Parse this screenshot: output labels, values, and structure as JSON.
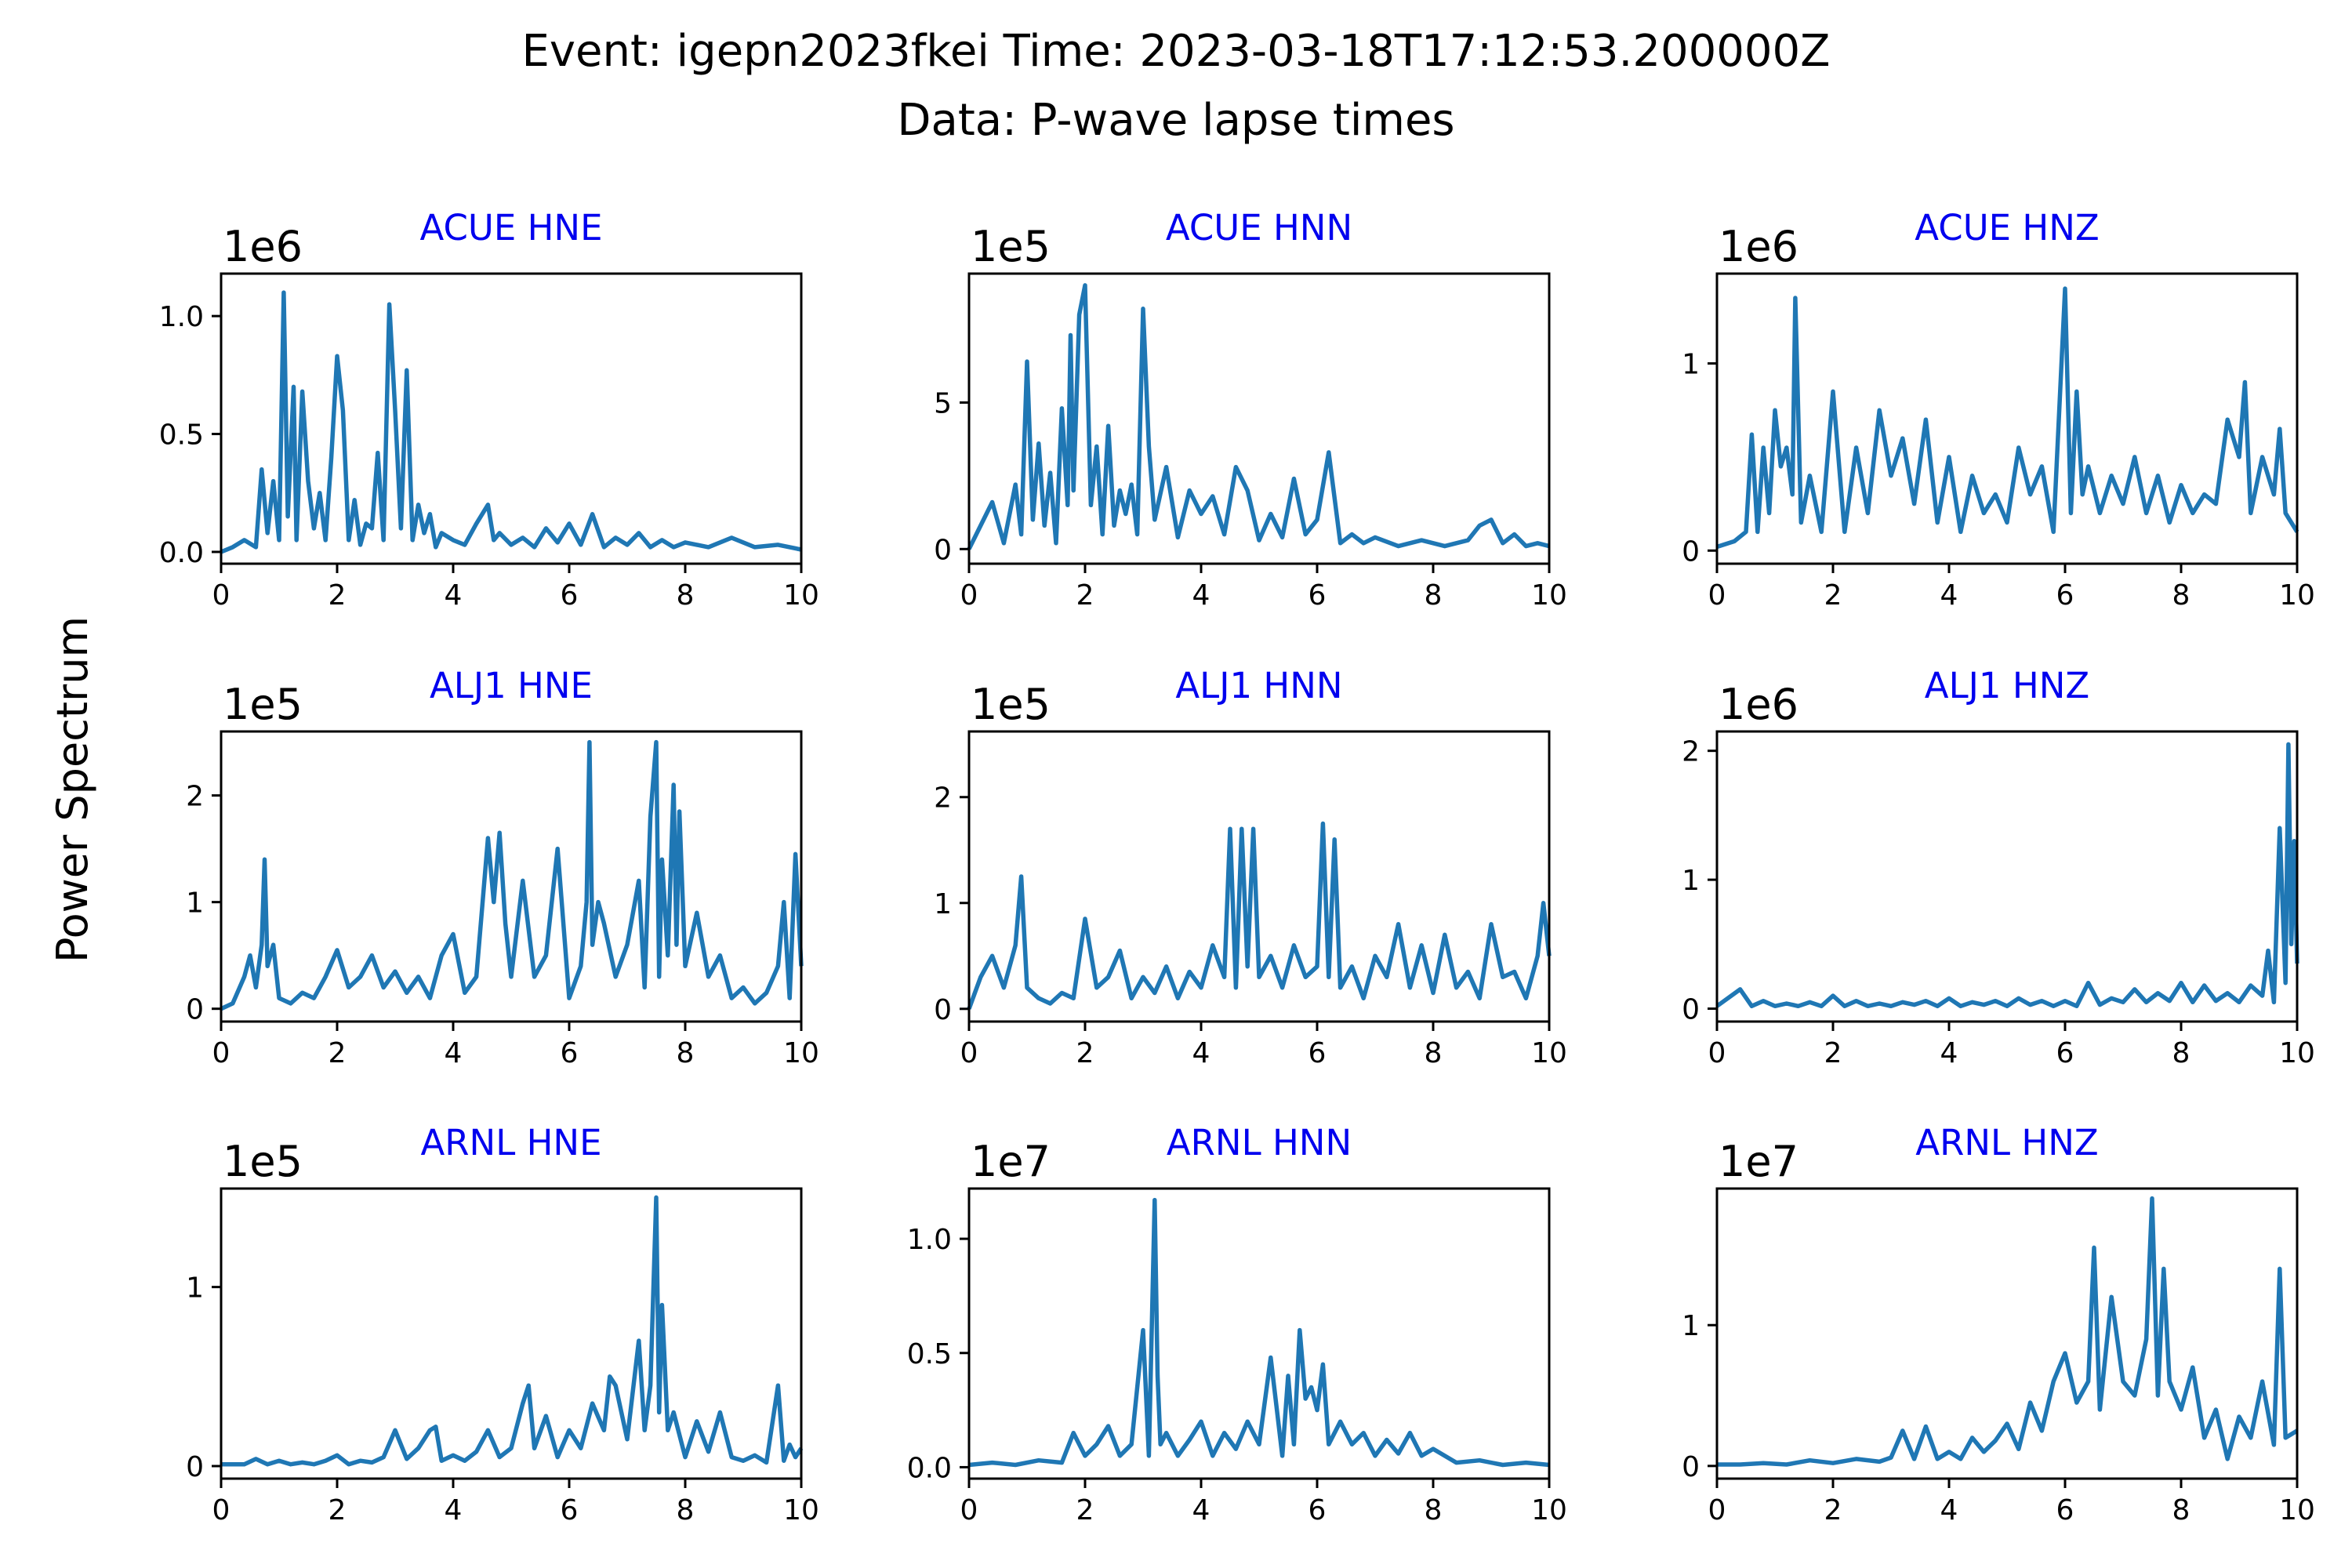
{
  "figure": {
    "title_line1": "Event: igepn2023fkei Time: 2023-03-18T17:12:53.200000Z",
    "title_line2": "Data: P-wave lapse times",
    "ylabel": "Power Spectrum"
  },
  "colors": {
    "line": "#1f77b4",
    "subplot_title": "#0000ee",
    "axis": "#000000",
    "text": "#000000"
  },
  "chart_data": [
    {
      "type": "line",
      "title": "ACUE HNE",
      "multiplier": "1e6",
      "xlim": [
        0,
        10
      ],
      "ylim": [
        -0.05,
        1.18
      ],
      "xticks": [
        "0",
        "2",
        "4",
        "6",
        "8",
        "10"
      ],
      "yticks": [
        0,
        0.5,
        1.0
      ],
      "ytick_labels": [
        "0.0",
        "0.5",
        "1.0"
      ],
      "x": [
        0,
        0.2,
        0.4,
        0.6,
        0.7,
        0.8,
        0.9,
        1.0,
        1.08,
        1.15,
        1.25,
        1.3,
        1.4,
        1.5,
        1.6,
        1.7,
        1.8,
        1.9,
        2.0,
        2.1,
        2.2,
        2.3,
        2.4,
        2.5,
        2.6,
        2.7,
        2.8,
        2.9,
        3.0,
        3.1,
        3.2,
        3.3,
        3.4,
        3.5,
        3.6,
        3.7,
        3.8,
        4.0,
        4.2,
        4.4,
        4.6,
        4.7,
        4.8,
        5.0,
        5.2,
        5.4,
        5.6,
        5.8,
        6.0,
        6.2,
        6.4,
        6.6,
        6.8,
        7.0,
        7.2,
        7.4,
        7.6,
        7.8,
        8.0,
        8.4,
        8.8,
        9.2,
        9.6,
        10.0
      ],
      "y": [
        0,
        0.02,
        0.05,
        0.02,
        0.35,
        0.08,
        0.3,
        0.05,
        1.1,
        0.15,
        0.7,
        0.05,
        0.68,
        0.3,
        0.1,
        0.25,
        0.05,
        0.4,
        0.83,
        0.6,
        0.05,
        0.22,
        0.03,
        0.12,
        0.1,
        0.42,
        0.05,
        1.05,
        0.6,
        0.1,
        0.77,
        0.05,
        0.2,
        0.08,
        0.16,
        0.02,
        0.08,
        0.05,
        0.03,
        0.12,
        0.2,
        0.05,
        0.08,
        0.03,
        0.06,
        0.02,
        0.1,
        0.04,
        0.12,
        0.03,
        0.16,
        0.02,
        0.06,
        0.03,
        0.08,
        0.02,
        0.05,
        0.02,
        0.04,
        0.02,
        0.06,
        0.02,
        0.03,
        0.01
      ]
    },
    {
      "type": "line",
      "title": "ACUE HNN",
      "multiplier": "1e5",
      "xlim": [
        0,
        10
      ],
      "ylim": [
        -0.5,
        9.4
      ],
      "xticks": [
        "0",
        "2",
        "4",
        "6",
        "8",
        "10"
      ],
      "yticks": [
        0,
        5
      ],
      "ytick_labels": [
        "0",
        "5"
      ],
      "x": [
        0,
        0.2,
        0.4,
        0.6,
        0.8,
        0.9,
        1.0,
        1.1,
        1.2,
        1.3,
        1.4,
        1.5,
        1.6,
        1.7,
        1.75,
        1.8,
        1.9,
        2.0,
        2.1,
        2.2,
        2.3,
        2.4,
        2.5,
        2.6,
        2.7,
        2.8,
        2.9,
        3.0,
        3.1,
        3.2,
        3.4,
        3.6,
        3.8,
        4.0,
        4.2,
        4.4,
        4.6,
        4.8,
        5.0,
        5.2,
        5.4,
        5.6,
        5.8,
        6.0,
        6.2,
        6.4,
        6.6,
        6.8,
        7.0,
        7.4,
        7.8,
        8.2,
        8.6,
        8.8,
        9.0,
        9.2,
        9.4,
        9.6,
        9.8,
        10.0
      ],
      "y": [
        0,
        0.8,
        1.6,
        0.2,
        2.2,
        0.5,
        6.4,
        1.0,
        3.6,
        0.8,
        2.6,
        0.2,
        4.8,
        1.5,
        7.3,
        2.0,
        8.0,
        9.0,
        1.5,
        3.5,
        0.5,
        4.2,
        0.8,
        2.0,
        1.2,
        2.2,
        0.5,
        8.2,
        3.5,
        1.0,
        2.8,
        0.4,
        2.0,
        1.2,
        1.8,
        0.5,
        2.8,
        2.0,
        0.3,
        1.2,
        0.4,
        2.4,
        0.5,
        1.0,
        3.3,
        0.2,
        0.5,
        0.2,
        0.4,
        0.1,
        0.3,
        0.1,
        0.3,
        0.8,
        1.0,
        0.2,
        0.5,
        0.1,
        0.2,
        0.1
      ]
    },
    {
      "type": "line",
      "title": "ACUE HNZ",
      "multiplier": "1e6",
      "xlim": [
        0,
        10
      ],
      "ylim": [
        -0.07,
        1.48
      ],
      "xticks": [
        "0",
        "2",
        "4",
        "6",
        "8",
        "10"
      ],
      "yticks": [
        0,
        1
      ],
      "ytick_labels": [
        "0",
        "1"
      ],
      "x": [
        0,
        0.3,
        0.5,
        0.6,
        0.7,
        0.8,
        0.9,
        1.0,
        1.1,
        1.2,
        1.3,
        1.35,
        1.45,
        1.6,
        1.8,
        2.0,
        2.2,
        2.4,
        2.6,
        2.8,
        3.0,
        3.2,
        3.4,
        3.6,
        3.8,
        4.0,
        4.2,
        4.4,
        4.6,
        4.8,
        5.0,
        5.2,
        5.4,
        5.6,
        5.8,
        6.0,
        6.1,
        6.2,
        6.3,
        6.4,
        6.6,
        6.8,
        7.0,
        7.2,
        7.4,
        7.6,
        7.8,
        8.0,
        8.2,
        8.4,
        8.6,
        8.8,
        9.0,
        9.1,
        9.2,
        9.4,
        9.6,
        9.7,
        9.8,
        10.0
      ],
      "y": [
        0.02,
        0.05,
        0.1,
        0.62,
        0.1,
        0.55,
        0.2,
        0.75,
        0.45,
        0.55,
        0.3,
        1.35,
        0.15,
        0.4,
        0.1,
        0.85,
        0.1,
        0.55,
        0.2,
        0.75,
        0.4,
        0.6,
        0.25,
        0.7,
        0.15,
        0.5,
        0.1,
        0.4,
        0.2,
        0.3,
        0.15,
        0.55,
        0.3,
        0.45,
        0.1,
        1.4,
        0.2,
        0.85,
        0.3,
        0.45,
        0.2,
        0.4,
        0.25,
        0.5,
        0.2,
        0.4,
        0.15,
        0.35,
        0.2,
        0.3,
        0.25,
        0.7,
        0.5,
        0.9,
        0.2,
        0.5,
        0.3,
        0.65,
        0.2,
        0.1
      ]
    },
    {
      "type": "line",
      "title": "ALJ1 HNE",
      "multiplier": "1e5",
      "xlim": [
        0,
        10
      ],
      "ylim": [
        -0.12,
        2.6
      ],
      "xticks": [
        "0",
        "2",
        "4",
        "6",
        "8",
        "10"
      ],
      "yticks": [
        0,
        1,
        2
      ],
      "ytick_labels": [
        "0",
        "1",
        "2"
      ],
      "x": [
        0,
        0.2,
        0.4,
        0.5,
        0.6,
        0.7,
        0.75,
        0.8,
        0.9,
        1.0,
        1.2,
        1.4,
        1.6,
        1.8,
        2.0,
        2.2,
        2.4,
        2.6,
        2.8,
        3.0,
        3.2,
        3.4,
        3.6,
        3.8,
        4.0,
        4.2,
        4.4,
        4.6,
        4.7,
        4.8,
        4.9,
        5.0,
        5.2,
        5.4,
        5.6,
        5.8,
        6.0,
        6.2,
        6.3,
        6.35,
        6.4,
        6.5,
        6.6,
        6.8,
        7.0,
        7.2,
        7.3,
        7.4,
        7.5,
        7.55,
        7.6,
        7.7,
        7.8,
        7.85,
        7.9,
        8.0,
        8.2,
        8.4,
        8.6,
        8.8,
        9.0,
        9.2,
        9.4,
        9.6,
        9.7,
        9.8,
        9.9,
        10.0
      ],
      "y": [
        0,
        0.05,
        0.3,
        0.5,
        0.2,
        0.6,
        1.4,
        0.4,
        0.6,
        0.1,
        0.05,
        0.15,
        0.1,
        0.3,
        0.55,
        0.2,
        0.3,
        0.5,
        0.2,
        0.35,
        0.15,
        0.3,
        0.1,
        0.5,
        0.7,
        0.15,
        0.3,
        1.6,
        1.0,
        1.65,
        0.8,
        0.3,
        1.2,
        0.3,
        0.5,
        1.5,
        0.1,
        0.4,
        1.0,
        2.5,
        0.6,
        1.0,
        0.8,
        0.3,
        0.6,
        1.2,
        0.2,
        1.8,
        2.5,
        0.3,
        1.4,
        0.5,
        2.1,
        0.6,
        1.85,
        0.4,
        0.9,
        0.3,
        0.5,
        0.1,
        0.2,
        0.05,
        0.15,
        0.4,
        1.0,
        0.1,
        1.45,
        0.4
      ]
    },
    {
      "type": "line",
      "title": "ALJ1 HNN",
      "multiplier": "1e5",
      "xlim": [
        0,
        10
      ],
      "ylim": [
        -0.12,
        2.62
      ],
      "xticks": [
        "0",
        "2",
        "4",
        "6",
        "8",
        "10"
      ],
      "yticks": [
        0,
        1,
        2
      ],
      "ytick_labels": [
        "0",
        "1",
        "2"
      ],
      "x": [
        0,
        0.2,
        0.4,
        0.6,
        0.8,
        0.9,
        1.0,
        1.2,
        1.4,
        1.6,
        1.8,
        2.0,
        2.2,
        2.4,
        2.6,
        2.8,
        3.0,
        3.2,
        3.4,
        3.6,
        3.8,
        4.0,
        4.2,
        4.4,
        4.5,
        4.6,
        4.7,
        4.8,
        4.9,
        5.0,
        5.2,
        5.4,
        5.6,
        5.8,
        6.0,
        6.1,
        6.2,
        6.3,
        6.4,
        6.6,
        6.8,
        7.0,
        7.2,
        7.4,
        7.6,
        7.8,
        8.0,
        8.2,
        8.4,
        8.6,
        8.8,
        9.0,
        9.2,
        9.4,
        9.6,
        9.8,
        9.9,
        10.0
      ],
      "y": [
        0,
        0.3,
        0.5,
        0.2,
        0.6,
        1.25,
        0.2,
        0.1,
        0.05,
        0.15,
        0.1,
        0.85,
        0.2,
        0.3,
        0.55,
        0.1,
        0.3,
        0.15,
        0.4,
        0.1,
        0.35,
        0.2,
        0.6,
        0.3,
        1.7,
        0.2,
        1.7,
        0.4,
        1.7,
        0.3,
        0.5,
        0.2,
        0.6,
        0.3,
        0.4,
        1.75,
        0.3,
        1.6,
        0.2,
        0.4,
        0.1,
        0.5,
        0.3,
        0.8,
        0.2,
        0.6,
        0.15,
        0.7,
        0.2,
        0.35,
        0.1,
        0.8,
        0.3,
        0.35,
        0.1,
        0.5,
        1.0,
        0.5
      ]
    },
    {
      "type": "line",
      "title": "ALJ1 HNZ",
      "multiplier": "1e6",
      "xlim": [
        0,
        10
      ],
      "ylim": [
        -0.1,
        2.15
      ],
      "xticks": [
        "0",
        "2",
        "4",
        "6",
        "8",
        "10"
      ],
      "yticks": [
        0,
        1,
        2
      ],
      "ytick_labels": [
        "0",
        "1",
        "2"
      ],
      "x": [
        0,
        0.4,
        0.6,
        0.8,
        1.0,
        1.2,
        1.4,
        1.6,
        1.8,
        2.0,
        2.2,
        2.4,
        2.6,
        2.8,
        3.0,
        3.2,
        3.4,
        3.6,
        3.8,
        4.0,
        4.2,
        4.4,
        4.6,
        4.8,
        5.0,
        5.2,
        5.4,
        5.6,
        5.8,
        6.0,
        6.2,
        6.4,
        6.6,
        6.8,
        7.0,
        7.2,
        7.4,
        7.6,
        7.8,
        8.0,
        8.2,
        8.4,
        8.6,
        8.8,
        9.0,
        9.2,
        9.4,
        9.5,
        9.6,
        9.7,
        9.8,
        9.85,
        9.9,
        9.95,
        10.0
      ],
      "y": [
        0.02,
        0.15,
        0.02,
        0.06,
        0.02,
        0.04,
        0.02,
        0.05,
        0.02,
        0.1,
        0.02,
        0.06,
        0.02,
        0.04,
        0.02,
        0.05,
        0.03,
        0.06,
        0.02,
        0.08,
        0.02,
        0.05,
        0.03,
        0.06,
        0.02,
        0.08,
        0.03,
        0.06,
        0.02,
        0.06,
        0.02,
        0.2,
        0.03,
        0.08,
        0.05,
        0.15,
        0.05,
        0.12,
        0.06,
        0.2,
        0.05,
        0.18,
        0.06,
        0.12,
        0.05,
        0.18,
        0.1,
        0.45,
        0.05,
        1.4,
        0.2,
        2.05,
        0.5,
        1.3,
        0.35
      ]
    },
    {
      "type": "line",
      "title": "ARNL HNE",
      "multiplier": "1e5",
      "xlim": [
        0,
        10
      ],
      "ylim": [
        -0.07,
        1.55
      ],
      "xticks": [
        "0",
        "2",
        "4",
        "6",
        "8",
        "10"
      ],
      "yticks": [
        0,
        1
      ],
      "ytick_labels": [
        "0",
        "1"
      ],
      "x": [
        0,
        0.4,
        0.6,
        0.8,
        1.0,
        1.2,
        1.4,
        1.6,
        1.8,
        2.0,
        2.2,
        2.4,
        2.6,
        2.8,
        3.0,
        3.2,
        3.4,
        3.6,
        3.7,
        3.8,
        4.0,
        4.2,
        4.4,
        4.6,
        4.8,
        5.0,
        5.2,
        5.3,
        5.4,
        5.6,
        5.8,
        6.0,
        6.2,
        6.4,
        6.6,
        6.7,
        6.8,
        7.0,
        7.2,
        7.3,
        7.4,
        7.5,
        7.55,
        7.6,
        7.7,
        7.8,
        8.0,
        8.2,
        8.4,
        8.6,
        8.8,
        9.0,
        9.2,
        9.4,
        9.6,
        9.7,
        9.8,
        9.9,
        10.0
      ],
      "y": [
        0.01,
        0.01,
        0.04,
        0.01,
        0.03,
        0.01,
        0.02,
        0.01,
        0.03,
        0.06,
        0.01,
        0.03,
        0.02,
        0.05,
        0.2,
        0.04,
        0.1,
        0.2,
        0.22,
        0.03,
        0.06,
        0.03,
        0.08,
        0.2,
        0.05,
        0.1,
        0.35,
        0.45,
        0.1,
        0.28,
        0.05,
        0.2,
        0.1,
        0.35,
        0.2,
        0.5,
        0.45,
        0.15,
        0.7,
        0.2,
        0.45,
        1.5,
        0.3,
        0.9,
        0.2,
        0.3,
        0.05,
        0.25,
        0.08,
        0.3,
        0.05,
        0.03,
        0.06,
        0.02,
        0.45,
        0.03,
        0.12,
        0.05,
        0.1
      ]
    },
    {
      "type": "line",
      "title": "ARNL HNN",
      "multiplier": "1e7",
      "xlim": [
        0,
        10
      ],
      "ylim": [
        -0.05,
        1.22
      ],
      "xticks": [
        "0",
        "2",
        "4",
        "6",
        "8",
        "10"
      ],
      "yticks": [
        0,
        0.5,
        1.0
      ],
      "ytick_labels": [
        "0.0",
        "0.5",
        "1.0"
      ],
      "x": [
        0,
        0.4,
        0.8,
        1.2,
        1.6,
        1.8,
        2.0,
        2.2,
        2.4,
        2.6,
        2.8,
        3.0,
        3.1,
        3.2,
        3.25,
        3.3,
        3.4,
        3.6,
        3.8,
        4.0,
        4.2,
        4.4,
        4.6,
        4.8,
        5.0,
        5.2,
        5.4,
        5.5,
        5.6,
        5.7,
        5.8,
        5.9,
        6.0,
        6.1,
        6.2,
        6.4,
        6.6,
        6.8,
        7.0,
        7.2,
        7.4,
        7.6,
        7.8,
        8.0,
        8.4,
        8.8,
        9.2,
        9.6,
        10.0
      ],
      "y": [
        0.01,
        0.02,
        0.01,
        0.03,
        0.02,
        0.15,
        0.05,
        0.1,
        0.18,
        0.05,
        0.1,
        0.6,
        0.05,
        1.17,
        0.4,
        0.1,
        0.15,
        0.05,
        0.12,
        0.2,
        0.05,
        0.15,
        0.08,
        0.2,
        0.1,
        0.48,
        0.05,
        0.4,
        0.1,
        0.6,
        0.3,
        0.35,
        0.25,
        0.45,
        0.1,
        0.2,
        0.1,
        0.15,
        0.05,
        0.12,
        0.06,
        0.15,
        0.05,
        0.08,
        0.02,
        0.03,
        0.01,
        0.02,
        0.01
      ]
    },
    {
      "type": "line",
      "title": "ARNL HNZ",
      "multiplier": "1e7",
      "xlim": [
        0,
        10
      ],
      "ylim": [
        -0.09,
        1.97
      ],
      "xticks": [
        "0",
        "2",
        "4",
        "6",
        "8",
        "10"
      ],
      "yticks": [
        0,
        1
      ],
      "ytick_labels": [
        "0",
        "1"
      ],
      "x": [
        0,
        0.4,
        0.8,
        1.2,
        1.6,
        2.0,
        2.4,
        2.8,
        3.0,
        3.2,
        3.4,
        3.6,
        3.8,
        4.0,
        4.2,
        4.4,
        4.6,
        4.8,
        5.0,
        5.2,
        5.4,
        5.6,
        5.8,
        6.0,
        6.2,
        6.4,
        6.5,
        6.6,
        6.8,
        7.0,
        7.2,
        7.4,
        7.5,
        7.6,
        7.7,
        7.8,
        8.0,
        8.2,
        8.4,
        8.6,
        8.8,
        9.0,
        9.2,
        9.4,
        9.6,
        9.7,
        9.8,
        10.0
      ],
      "y": [
        0.01,
        0.01,
        0.02,
        0.01,
        0.04,
        0.02,
        0.05,
        0.03,
        0.06,
        0.25,
        0.05,
        0.28,
        0.05,
        0.1,
        0.05,
        0.2,
        0.1,
        0.18,
        0.3,
        0.12,
        0.45,
        0.25,
        0.6,
        0.8,
        0.45,
        0.6,
        1.55,
        0.4,
        1.2,
        0.6,
        0.5,
        0.9,
        1.9,
        0.5,
        1.4,
        0.6,
        0.4,
        0.7,
        0.2,
        0.4,
        0.05,
        0.35,
        0.2,
        0.6,
        0.15,
        1.4,
        0.2,
        0.25
      ]
    }
  ]
}
